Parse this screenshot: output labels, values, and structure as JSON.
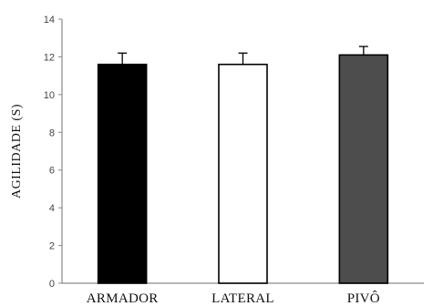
{
  "chart_data": {
    "type": "bar",
    "title": "",
    "xlabel": "",
    "ylabel": "AGILIDADE (S)",
    "ylim": [
      0,
      14
    ],
    "yticks": [
      0,
      2,
      4,
      6,
      8,
      10,
      12,
      14
    ],
    "categories": [
      "ARMADOR",
      "LATERAL",
      "PIVÔ"
    ],
    "values": [
      11.6,
      11.6,
      12.1
    ],
    "errors": [
      0.6,
      0.6,
      0.45
    ],
    "bar_colors": [
      "#000000",
      "#ffffff",
      "#4d4d4d"
    ],
    "grid": false,
    "legend": "none"
  }
}
